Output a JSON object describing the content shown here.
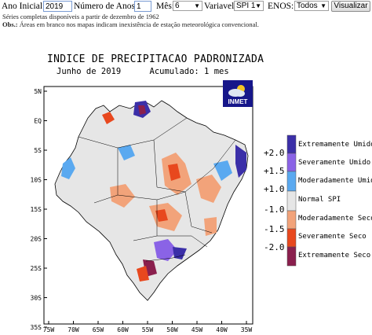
{
  "form": {
    "ano_inicial_label": "Ano Inicial:",
    "ano_inicial_value": "2019",
    "num_anos_label": "Número de Anos:",
    "num_anos_value": "1",
    "mes_label": "Mês:",
    "mes_value": "6",
    "variavel_label": "Variavel:",
    "variavel_value": "SPI 1",
    "enos_label": "ENOS:",
    "enos_value": "Todos",
    "visualizar_label": "Visualizar"
  },
  "notes": {
    "series_note": "Séries completas disponíveis a partir de dezembro de 1962",
    "obs_label": "Obs.:",
    "obs_text": "Áreas em branco nos mapas indicam inexistência de estação meteorológica convencional."
  },
  "map": {
    "title": "INDICE DE PRECIPITACAO PADRONIZADA",
    "period": "Junho de 2019",
    "accum": "Acumulado: 1 mes",
    "logo_text": "INMET",
    "lat_labels": [
      "5N",
      "EQ",
      "5S",
      "10S",
      "15S",
      "20S",
      "25S",
      "30S",
      "35S"
    ],
    "lon_labels": [
      "75W",
      "70W",
      "65W",
      "60W",
      "55W",
      "50W",
      "45W",
      "40W",
      "35W"
    ]
  },
  "legend": {
    "ticks": [
      "+2.0",
      "+1.5",
      "+1.0",
      "-1.0",
      "-1.5",
      "-2.0"
    ],
    "classes": [
      {
        "label": "Extremamente Umido",
        "color": "#3b2fa8"
      },
      {
        "label": "Severamente Umido",
        "color": "#8a63e6"
      },
      {
        "label": "Moderadamente Umido",
        "color": "#5aa9f0"
      },
      {
        "label": "Normal SPI",
        "color": "#e6e6e6"
      },
      {
        "label": "Moderadamente Seco",
        "color": "#f2a37a"
      },
      {
        "label": "Severamente Seco",
        "color": "#e8481e"
      },
      {
        "label": "Extremamente Seco",
        "color": "#8a1f4d"
      }
    ]
  }
}
